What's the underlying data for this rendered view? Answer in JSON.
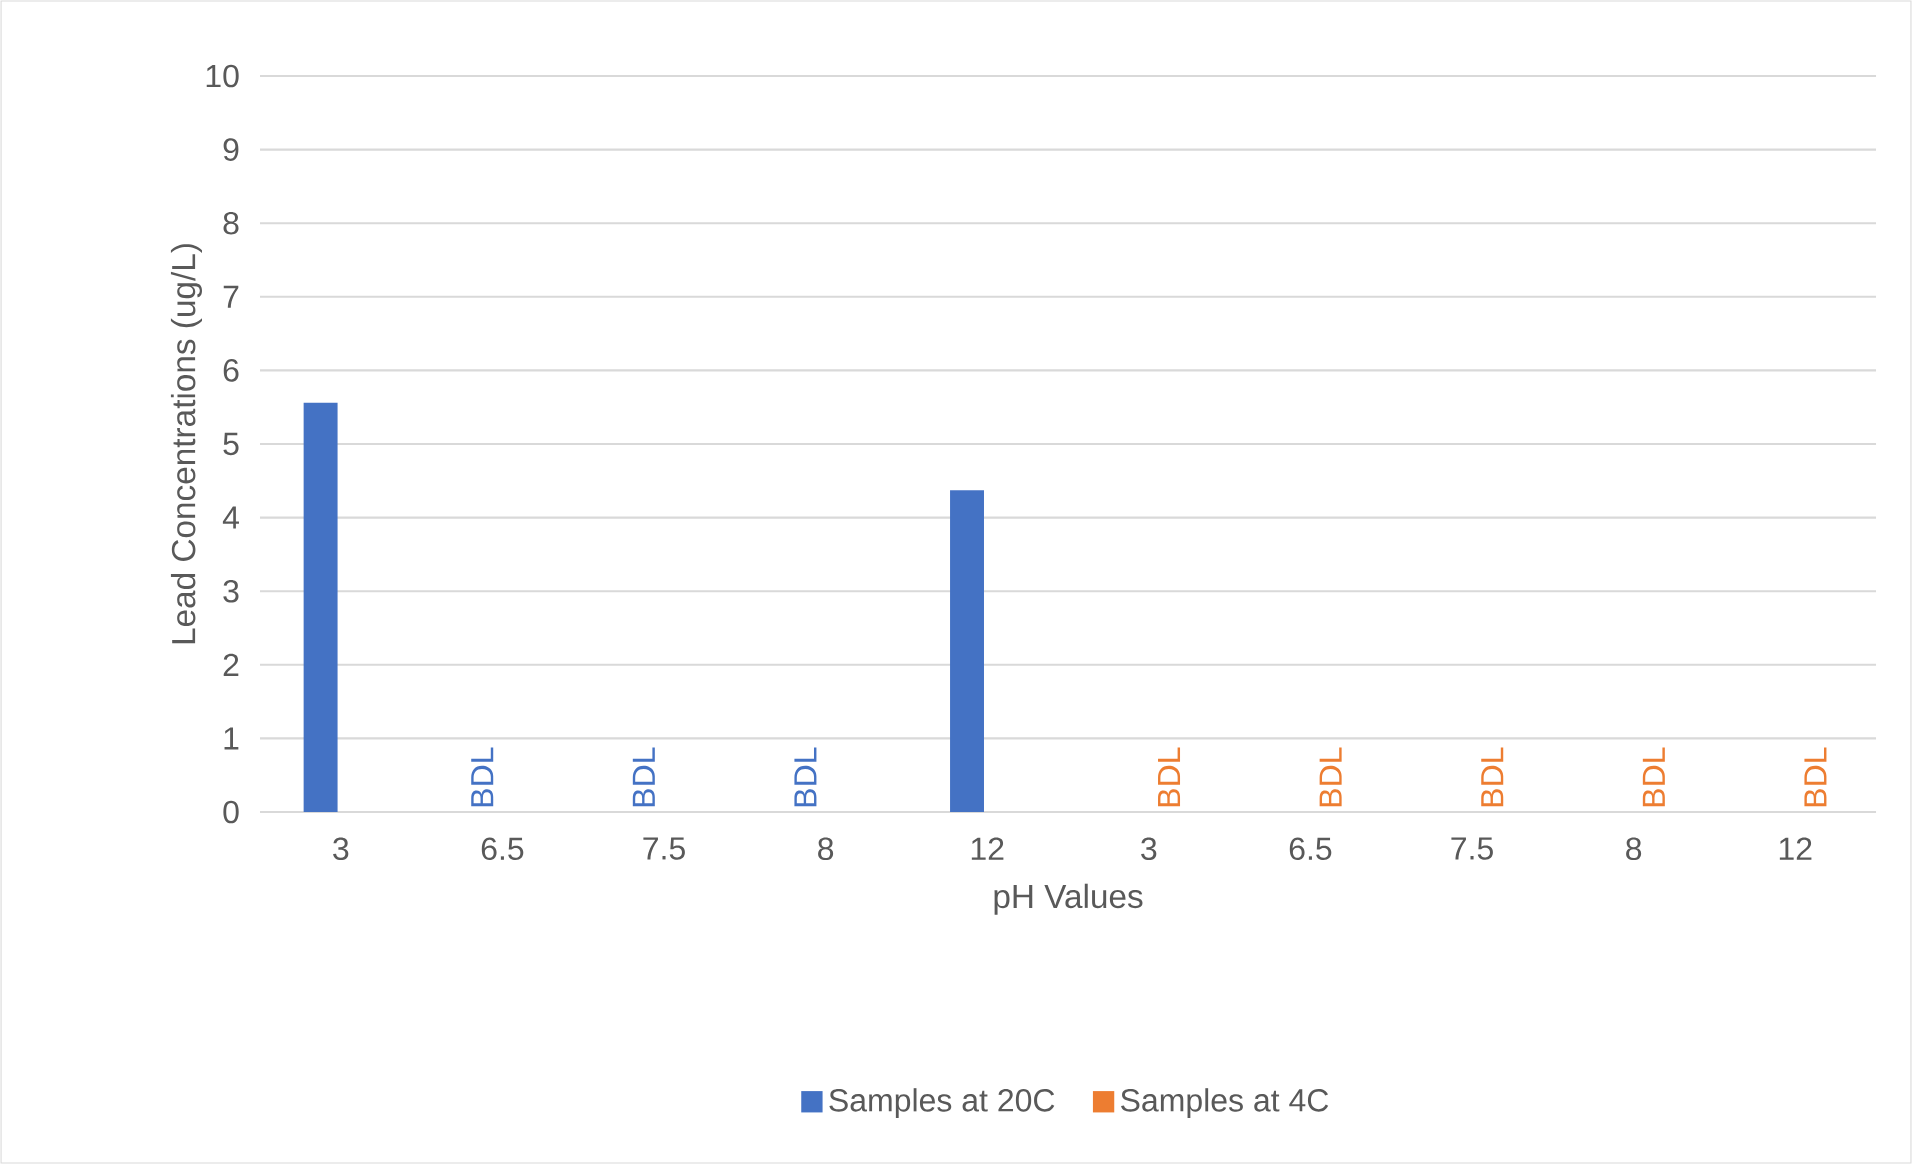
{
  "chart_data": {
    "type": "bar",
    "categories": [
      "3",
      "6.5",
      "7.5",
      "8",
      "12",
      "3",
      "6.5",
      "7.5",
      "8",
      "12"
    ],
    "series": [
      {
        "name": "Samples at 20C",
        "color": "#4472c4",
        "values": [
          5.56,
          null,
          null,
          null,
          4.37,
          null,
          null,
          null,
          null,
          null
        ],
        "value_labels": [
          null,
          "BDL",
          "BDL",
          "BDL",
          null,
          null,
          null,
          null,
          null,
          null
        ]
      },
      {
        "name": "Samples at 4C",
        "color": "#ed7d31",
        "values": [
          null,
          null,
          null,
          null,
          null,
          null,
          null,
          null,
          null,
          null
        ],
        "value_labels": [
          null,
          null,
          null,
          null,
          null,
          "BDL",
          "BDL",
          "BDL",
          "BDL",
          "BDL"
        ]
      }
    ],
    "xlabel": "pH Values",
    "ylabel": "Lead Concentrations (ug/L)",
    "ylim": [
      0,
      10
    ],
    "yticks": [
      0,
      1,
      2,
      3,
      4,
      5,
      6,
      7,
      8,
      9,
      10
    ],
    "grid": "y",
    "legend": "bottom"
  }
}
